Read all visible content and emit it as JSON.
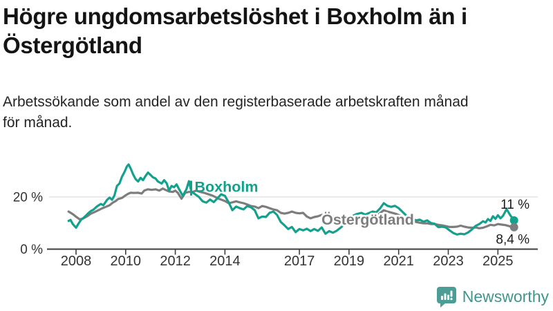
{
  "header": {
    "title_lines": [
      "Högre ungdomsarbetslöshet i Boxholm än i",
      "Östergötland"
    ],
    "subtitle_lines": [
      "Arbetssökande som andel av den registerbaserade arbetskraften månad",
      "för månad."
    ]
  },
  "chart_data": {
    "type": "line",
    "title": "Högre ungdomsarbetslöshet i Boxholm än i Östergötland",
    "subtitle": "Arbetssökande som andel av den registerbaserade arbetskraften månad för månad.",
    "unit": "%",
    "grid": "horizontal-only",
    "x_axis": {
      "range": [
        2007.6,
        2026.3
      ],
      "ticks": [
        "2008",
        "2010",
        "2012",
        "2014",
        "2017",
        "2019",
        "2021",
        "2023",
        "2025"
      ]
    },
    "y_axis": {
      "range": [
        0,
        34
      ],
      "ticks": [
        {
          "value": 0,
          "label": "0 %"
        },
        {
          "value": 20,
          "label": "20 %"
        }
      ]
    },
    "series": [
      {
        "name": "Boxholm",
        "color": "#13a08d",
        "end_value": 11.0,
        "end_label": "11 %",
        "points": [
          [
            2007.7,
            10.8
          ],
          [
            2007.78,
            11.2
          ],
          [
            2007.87,
            9.6
          ],
          [
            2008.0,
            8.2
          ],
          [
            2008.1,
            9.8
          ],
          [
            2008.2,
            11.2
          ],
          [
            2008.35,
            12.4
          ],
          [
            2008.5,
            13.8
          ],
          [
            2008.6,
            14.6
          ],
          [
            2008.7,
            15.1
          ],
          [
            2008.85,
            16.4
          ],
          [
            2009.0,
            17.3
          ],
          [
            2009.1,
            16.8
          ],
          [
            2009.25,
            18.9
          ],
          [
            2009.35,
            19.7
          ],
          [
            2009.45,
            18.9
          ],
          [
            2009.55,
            20.6
          ],
          [
            2009.65,
            24.2
          ],
          [
            2009.75,
            25.1
          ],
          [
            2009.85,
            27.7
          ],
          [
            2009.95,
            29.5
          ],
          [
            2010.05,
            31.7
          ],
          [
            2010.12,
            32.4
          ],
          [
            2010.2,
            30.9
          ],
          [
            2010.3,
            28.6
          ],
          [
            2010.4,
            26.8
          ],
          [
            2010.5,
            25.9
          ],
          [
            2010.6,
            27.3
          ],
          [
            2010.7,
            26.4
          ],
          [
            2010.8,
            28.0
          ],
          [
            2010.9,
            29.3
          ],
          [
            2011.0,
            28.4
          ],
          [
            2011.1,
            27.5
          ],
          [
            2011.2,
            27.1
          ],
          [
            2011.3,
            25.9
          ],
          [
            2011.45,
            25.1
          ],
          [
            2011.55,
            26.4
          ],
          [
            2011.65,
            25.3
          ],
          [
            2011.75,
            22.4
          ],
          [
            2011.85,
            24.2
          ],
          [
            2011.95,
            23.7
          ],
          [
            2012.05,
            24.8
          ],
          [
            2012.15,
            23.0
          ],
          [
            2012.3,
            20.4
          ],
          [
            2012.45,
            23.0
          ],
          [
            2012.55,
            26.0
          ],
          [
            2012.65,
            22.0
          ],
          [
            2012.8,
            21.0
          ],
          [
            2012.95,
            20.0
          ],
          [
            2013.1,
            18.3
          ],
          [
            2013.25,
            17.8
          ],
          [
            2013.4,
            19.0
          ],
          [
            2013.55,
            18.0
          ],
          [
            2013.7,
            19.5
          ],
          [
            2013.85,
            21.0
          ],
          [
            2014.0,
            20.4
          ],
          [
            2014.15,
            17.9
          ],
          [
            2014.3,
            14.9
          ],
          [
            2014.45,
            16.3
          ],
          [
            2014.6,
            15.7
          ],
          [
            2014.75,
            15.2
          ],
          [
            2014.9,
            16.5
          ],
          [
            2015.05,
            16.0
          ],
          [
            2015.2,
            14.9
          ],
          [
            2015.35,
            11.8
          ],
          [
            2015.5,
            12.5
          ],
          [
            2015.65,
            12.3
          ],
          [
            2015.8,
            13.9
          ],
          [
            2015.95,
            14.4
          ],
          [
            2016.1,
            13.1
          ],
          [
            2016.25,
            10.4
          ],
          [
            2016.4,
            9.1
          ],
          [
            2016.55,
            7.7
          ],
          [
            2016.7,
            8.5
          ],
          [
            2016.85,
            6.5
          ],
          [
            2017.0,
            7.7
          ],
          [
            2017.15,
            7.2
          ],
          [
            2017.3,
            7.8
          ],
          [
            2017.45,
            6.9
          ],
          [
            2017.6,
            7.7
          ],
          [
            2017.75,
            7.0
          ],
          [
            2017.9,
            8.3
          ],
          [
            2018.05,
            5.9
          ],
          [
            2018.2,
            6.9
          ],
          [
            2018.35,
            6.3
          ],
          [
            2018.5,
            7.0
          ],
          [
            2018.7,
            8.5
          ],
          [
            2018.9,
            10.5
          ],
          [
            2019.1,
            12.5
          ],
          [
            2019.3,
            13.4
          ],
          [
            2019.5,
            13.9
          ],
          [
            2019.65,
            13.2
          ],
          [
            2019.8,
            13.8
          ],
          [
            2019.95,
            14.4
          ],
          [
            2020.1,
            14.1
          ],
          [
            2020.25,
            15.6
          ],
          [
            2020.4,
            17.6
          ],
          [
            2020.55,
            16.6
          ],
          [
            2020.7,
            16.2
          ],
          [
            2020.85,
            16.6
          ],
          [
            2021.0,
            15.7
          ],
          [
            2021.15,
            14.3
          ],
          [
            2021.3,
            12.9
          ],
          [
            2021.5,
            11.8
          ],
          [
            2021.7,
            11.0
          ],
          [
            2021.85,
            11.3
          ],
          [
            2022.0,
            10.5
          ],
          [
            2022.15,
            11.0
          ],
          [
            2022.3,
            10.0
          ],
          [
            2022.45,
            9.7
          ],
          [
            2022.6,
            8.4
          ],
          [
            2022.75,
            8.6
          ],
          [
            2022.9,
            8.3
          ],
          [
            2023.05,
            7.2
          ],
          [
            2023.2,
            6.2
          ],
          [
            2023.35,
            5.6
          ],
          [
            2023.5,
            5.9
          ],
          [
            2023.65,
            5.7
          ],
          [
            2023.8,
            6.4
          ],
          [
            2023.95,
            7.5
          ],
          [
            2024.1,
            8.9
          ],
          [
            2024.25,
            9.6
          ],
          [
            2024.4,
            10.7
          ],
          [
            2024.5,
            10.2
          ],
          [
            2024.6,
            11.5
          ],
          [
            2024.7,
            10.8
          ],
          [
            2024.8,
            12.6
          ],
          [
            2024.9,
            11.6
          ],
          [
            2025.0,
            13.0
          ],
          [
            2025.1,
            11.8
          ],
          [
            2025.2,
            12.7
          ],
          [
            2025.35,
            15.3
          ],
          [
            2025.5,
            12.9
          ],
          [
            2025.65,
            11.0
          ]
        ]
      },
      {
        "name": "Östergötland",
        "color": "#7d7d7d",
        "end_value": 8.4,
        "end_label": "8,4 %",
        "points": [
          [
            2007.7,
            14.4
          ],
          [
            2007.8,
            13.8
          ],
          [
            2007.9,
            13.2
          ],
          [
            2008.0,
            12.4
          ],
          [
            2008.15,
            11.4
          ],
          [
            2008.3,
            11.8
          ],
          [
            2008.45,
            12.6
          ],
          [
            2008.6,
            13.6
          ],
          [
            2008.75,
            14.2
          ],
          [
            2008.9,
            14.9
          ],
          [
            2009.05,
            15.6
          ],
          [
            2009.2,
            16.2
          ],
          [
            2009.35,
            16.8
          ],
          [
            2009.5,
            17.9
          ],
          [
            2009.6,
            18.4
          ],
          [
            2009.7,
            19.2
          ],
          [
            2009.85,
            19.6
          ],
          [
            2010.0,
            20.6
          ],
          [
            2010.1,
            21.2
          ],
          [
            2010.2,
            21.6
          ],
          [
            2010.35,
            21.5
          ],
          [
            2010.5,
            21.6
          ],
          [
            2010.65,
            21.3
          ],
          [
            2010.75,
            22.4
          ],
          [
            2010.9,
            22.9
          ],
          [
            2011.05,
            22.7
          ],
          [
            2011.2,
            22.9
          ],
          [
            2011.35,
            22.4
          ],
          [
            2011.5,
            23.2
          ],
          [
            2011.6,
            22.7
          ],
          [
            2011.75,
            22.1
          ],
          [
            2011.9,
            21.9
          ],
          [
            2012.0,
            22.4
          ],
          [
            2012.1,
            21.6
          ],
          [
            2012.25,
            19.3
          ],
          [
            2012.4,
            21.6
          ],
          [
            2012.55,
            21.9
          ],
          [
            2012.7,
            21.9
          ],
          [
            2012.85,
            22.4
          ],
          [
            2013.0,
            21.9
          ],
          [
            2013.15,
            21.6
          ],
          [
            2013.3,
            21.1
          ],
          [
            2013.5,
            20.5
          ],
          [
            2013.75,
            19.3
          ],
          [
            2014.0,
            18.4
          ],
          [
            2014.15,
            17.6
          ],
          [
            2014.3,
            17.9
          ],
          [
            2014.45,
            18.3
          ],
          [
            2014.6,
            17.9
          ],
          [
            2014.75,
            17.6
          ],
          [
            2014.9,
            17.1
          ],
          [
            2015.05,
            16.5
          ],
          [
            2015.2,
            16.3
          ],
          [
            2015.35,
            15.7
          ],
          [
            2015.5,
            16.5
          ],
          [
            2015.65,
            16.2
          ],
          [
            2015.8,
            15.7
          ],
          [
            2015.95,
            15.2
          ],
          [
            2016.1,
            14.9
          ],
          [
            2016.25,
            13.9
          ],
          [
            2016.4,
            13.6
          ],
          [
            2016.55,
            13.9
          ],
          [
            2016.7,
            14.4
          ],
          [
            2016.85,
            13.9
          ],
          [
            2017.0,
            13.7
          ],
          [
            2017.15,
            13.9
          ],
          [
            2017.3,
            12.5
          ],
          [
            2017.45,
            11.8
          ],
          [
            2017.6,
            12.3
          ],
          [
            2017.75,
            12.6
          ],
          [
            2017.9,
            13.1
          ],
          [
            2018.05,
            12.8
          ],
          [
            2018.2,
            13.1
          ],
          [
            2018.4,
            12.3
          ],
          [
            2018.6,
            11.9
          ],
          [
            2018.8,
            11.5
          ],
          [
            2019.0,
            11.2
          ],
          [
            2019.2,
            11.0
          ],
          [
            2019.4,
            10.9
          ],
          [
            2019.6,
            11.0
          ],
          [
            2019.8,
            11.3
          ],
          [
            2020.0,
            11.8
          ],
          [
            2020.2,
            13.4
          ],
          [
            2020.4,
            14.9
          ],
          [
            2020.55,
            14.4
          ],
          [
            2020.7,
            14.0
          ],
          [
            2020.9,
            13.5
          ],
          [
            2021.1,
            12.6
          ],
          [
            2021.3,
            11.7
          ],
          [
            2021.5,
            10.9
          ],
          [
            2021.7,
            10.4
          ],
          [
            2021.85,
            10.1
          ],
          [
            2022.0,
            9.9
          ],
          [
            2022.15,
            9.9
          ],
          [
            2022.3,
            9.6
          ],
          [
            2022.45,
            9.6
          ],
          [
            2022.6,
            9.3
          ],
          [
            2022.75,
            9.1
          ],
          [
            2022.9,
            8.8
          ],
          [
            2023.05,
            8.5
          ],
          [
            2023.2,
            8.5
          ],
          [
            2023.35,
            8.6
          ],
          [
            2023.5,
            9.0
          ],
          [
            2023.65,
            8.6
          ],
          [
            2023.8,
            8.3
          ],
          [
            2023.95,
            8.2
          ],
          [
            2024.1,
            8.3
          ],
          [
            2024.25,
            8.0
          ],
          [
            2024.4,
            8.2
          ],
          [
            2024.55,
            8.7
          ],
          [
            2024.7,
            9.3
          ],
          [
            2024.85,
            9.1
          ],
          [
            2025.0,
            9.6
          ],
          [
            2025.15,
            9.4
          ],
          [
            2025.3,
            9.2
          ],
          [
            2025.45,
            8.8
          ],
          [
            2025.65,
            8.4
          ]
        ]
      }
    ],
    "legend_position": "inline-labels"
  },
  "colors": {
    "boxholm": "#13a08d",
    "ostergotland": "#7d7d7d",
    "gridline": "#e2e2e2",
    "axis": "#3d3d3d",
    "tick_text": "#333333",
    "value_text": "#1a1a1a",
    "logo": "#3f968e"
  },
  "footer": {
    "brand": "Newsworthy"
  }
}
